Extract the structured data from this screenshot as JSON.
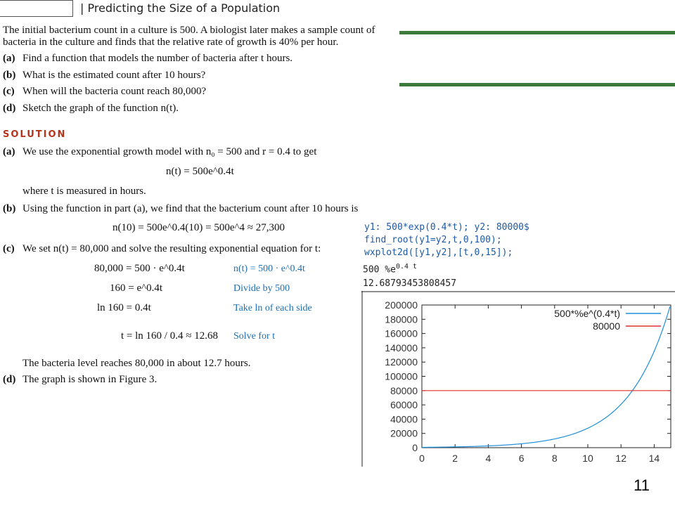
{
  "header": {
    "title": "Predicting the Size of a Population"
  },
  "problem": {
    "intro_line1": "The initial bacterium count in a culture is 500. A biologist later makes a sample count of",
    "intro_line2": "bacteria in the culture and finds that the relative rate of growth is 40% per hour.",
    "parts": [
      {
        "label": "(a)",
        "text": "Find a function that models the number of bacteria after t hours."
      },
      {
        "label": "(b)",
        "text": "What is the estimated count after 10 hours?"
      },
      {
        "label": "(c)",
        "text": "When will the bacteria count reach 80,000?"
      },
      {
        "label": "(d)",
        "text": "Sketch the graph of the function n(t)."
      }
    ]
  },
  "solution": {
    "heading": "SOLUTION",
    "a_label": "(a)",
    "a_text": "We use the exponential growth model with n₀ = 500 and r = 0.4 to get",
    "a_eq": "n(t) = 500e^0.4t",
    "a_where": "where t is measured in hours.",
    "b_label": "(b)",
    "b_text": "Using the function in part (a), we find that the bacterium count after 10 hours is",
    "b_eq": "n(10) = 500e^0.4(10) = 500e^4 ≈ 27,300",
    "c_label": "(c)",
    "c_text": "We set n(t) = 80,000 and solve the resulting exponential equation for t:",
    "steps": [
      {
        "eq": "80,000 = 500 · e^0.4t",
        "note": "n(t) = 500 · e^0.4t"
      },
      {
        "eq": "160 = e^0.4t",
        "note": "Divide by 500"
      },
      {
        "eq": "ln 160 = 0.4t",
        "note": "Take ln of each side"
      },
      {
        "eq": "t = ln 160 / 0.4 ≈ 12.68",
        "note": "Solve for t"
      }
    ],
    "conclusion": "The bacteria level reaches 80,000 in about 12.7 hours.",
    "d_label": "(d)",
    "d_text": "The graph is shown in Figure 3."
  },
  "maxima": {
    "input1": "y1: 500*exp(0.4*t);  y2: 80000$",
    "input2": "find_root(y1=y2,t,0,100);",
    "input3": "wxplot2d([y1,y2],[t,0,15]);",
    "output1": "500 %e",
    "output1_sup": "0.4 t",
    "output2": "12.68793453808457"
  },
  "chart_data": {
    "type": "line",
    "xlim": [
      0,
      15
    ],
    "ylim": [
      0,
      200000
    ],
    "xticks": [
      "0",
      "2",
      "4",
      "6",
      "8",
      "10",
      "12",
      "14"
    ],
    "yticks": [
      "0",
      "20000",
      "40000",
      "60000",
      "80000",
      "100000",
      "120000",
      "140000",
      "160000",
      "180000",
      "200000"
    ],
    "series": [
      {
        "name": "500*%e^(0.4*t)",
        "color": "#1f8fdc",
        "function": "500*exp(0.4*t)"
      },
      {
        "name": "80000",
        "color": "#e03030",
        "constant": 80000
      }
    ],
    "legend_position": "top-right"
  },
  "slide_number": "11"
}
